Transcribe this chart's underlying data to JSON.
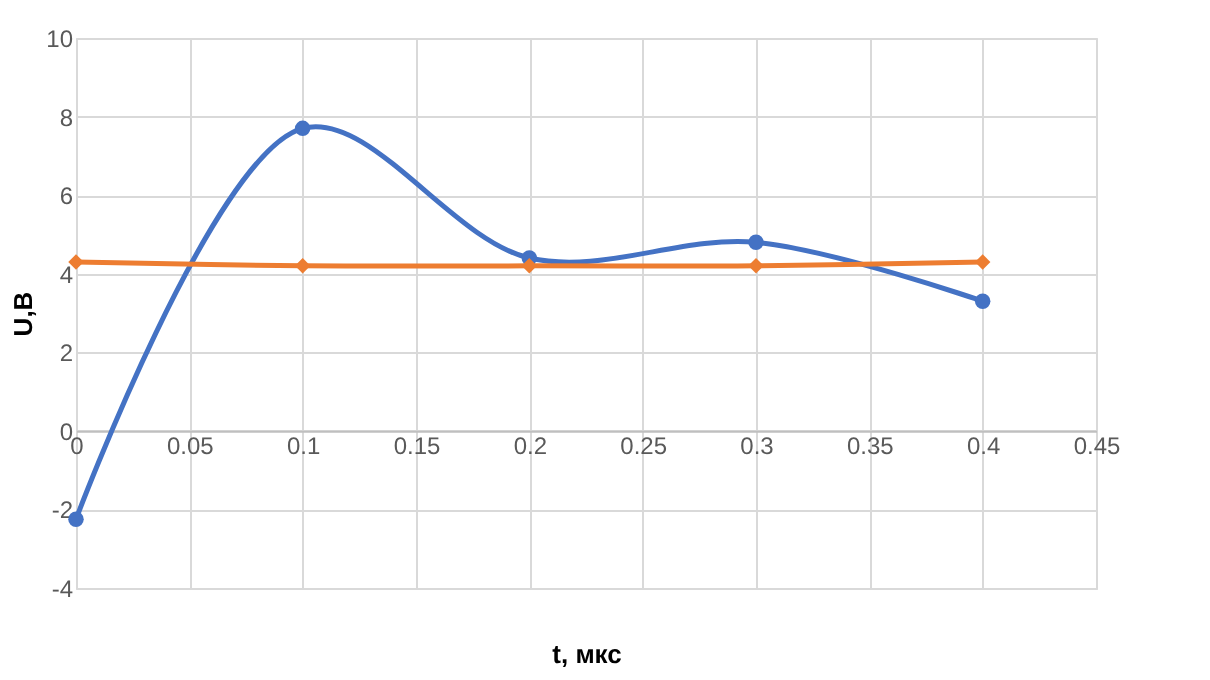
{
  "chart_data": {
    "type": "line",
    "xlabel": "t, мкс",
    "ylabel": "U,B",
    "x": [
      0,
      0.1,
      0.2,
      0.3,
      0.4
    ],
    "series": [
      {
        "color": "#4472c4",
        "marker": "circle",
        "values": [
          -2.25,
          7.7,
          4.4,
          4.8,
          3.3
        ]
      },
      {
        "color": "#ed7d31",
        "marker": "diamond",
        "values": [
          4.3,
          4.2,
          4.2,
          4.2,
          4.3
        ]
      }
    ],
    "xlim": [
      0,
      0.45
    ],
    "xticks": [
      0,
      0.05,
      0.1,
      0.15,
      0.2,
      0.25,
      0.3,
      0.35,
      0.4,
      0.45
    ],
    "ylim": [
      -4,
      10
    ],
    "yticks": [
      -4,
      -2,
      0,
      2,
      4,
      6,
      8,
      10
    ],
    "grid": true,
    "legend": false,
    "line_style": "solid"
  }
}
